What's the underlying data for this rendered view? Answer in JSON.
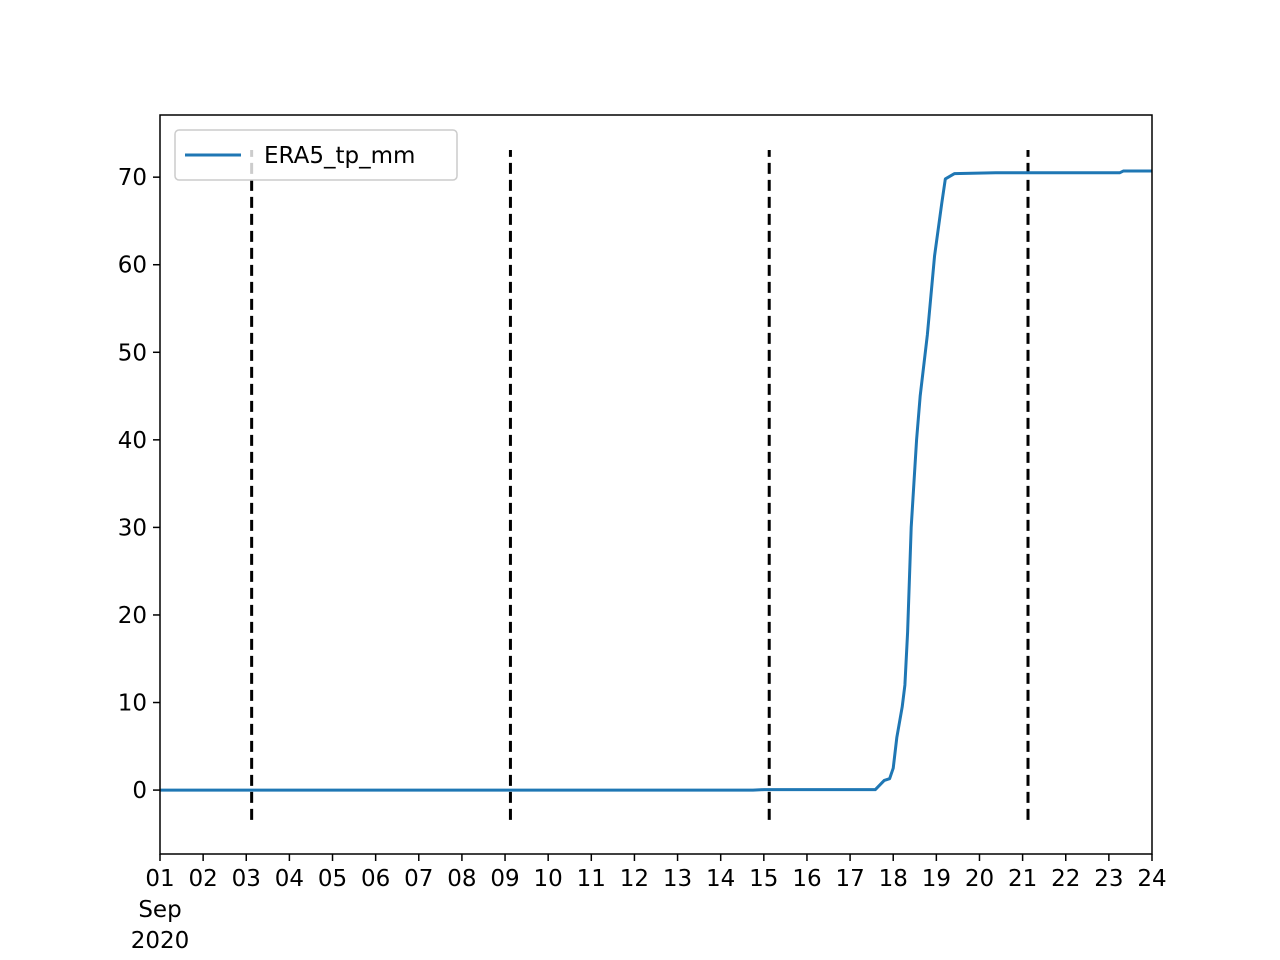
{
  "chart_data": {
    "type": "line",
    "series": [
      {
        "name": "ERA5_tp_mm",
        "color": "#1f77b4",
        "x": [
          "2020-09-01T00:00",
          "2020-09-14T18:00",
          "2020-09-15T00:00",
          "2020-09-17T14:00",
          "2020-09-17T19:00",
          "2020-09-17T22:00",
          "2020-09-18T00:00",
          "2020-09-18T02:00",
          "2020-09-18T05:00",
          "2020-09-18T06:30",
          "2020-09-18T08:00",
          "2020-09-18T10:00",
          "2020-09-18T13:00",
          "2020-09-18T15:00",
          "2020-09-18T19:00",
          "2020-09-18T23:00",
          "2020-09-19T03:00",
          "2020-09-19T05:00",
          "2020-09-19T10:00",
          "2020-09-20T09:00",
          "2020-09-23T06:00",
          "2020-09-23T08:00",
          "2020-09-24T00:00"
        ],
        "values": [
          0,
          0,
          0.05,
          0.05,
          1.1,
          1.3,
          2.5,
          6,
          9.5,
          12,
          18,
          30,
          40,
          45,
          52,
          61,
          67,
          69.8,
          70.4,
          70.5,
          70.5,
          70.7,
          70.7
        ]
      }
    ],
    "vlines": {
      "x": [
        "2020-09-03T03:00",
        "2020-09-09T03:00",
        "2020-09-15T03:00",
        "2020-09-21T03:00"
      ],
      "ymin": -3.4,
      "ymax": 73.1,
      "color": "#000000"
    },
    "xlim": [
      "2020-09-01",
      "2020-09-24"
    ],
    "xticks": [
      {
        "value": "2020-09-01",
        "label": "01\nSep\n2020"
      },
      {
        "value": "2020-09-02",
        "label": "02"
      },
      {
        "value": "2020-09-03",
        "label": "03"
      },
      {
        "value": "2020-09-04",
        "label": "04"
      },
      {
        "value": "2020-09-05",
        "label": "05"
      },
      {
        "value": "2020-09-06",
        "label": "06"
      },
      {
        "value": "2020-09-07",
        "label": "07"
      },
      {
        "value": "2020-09-08",
        "label": "08"
      },
      {
        "value": "2020-09-09",
        "label": "09"
      },
      {
        "value": "2020-09-10",
        "label": "10"
      },
      {
        "value": "2020-09-11",
        "label": "11"
      },
      {
        "value": "2020-09-12",
        "label": "12"
      },
      {
        "value": "2020-09-13",
        "label": "13"
      },
      {
        "value": "2020-09-14",
        "label": "14"
      },
      {
        "value": "2020-09-15",
        "label": "15"
      },
      {
        "value": "2020-09-16",
        "label": "16"
      },
      {
        "value": "2020-09-17",
        "label": "17"
      },
      {
        "value": "2020-09-18",
        "label": "18"
      },
      {
        "value": "2020-09-19",
        "label": "19"
      },
      {
        "value": "2020-09-20",
        "label": "20"
      },
      {
        "value": "2020-09-21",
        "label": "21"
      },
      {
        "value": "2020-09-22",
        "label": "22"
      },
      {
        "value": "2020-09-23",
        "label": "23"
      },
      {
        "value": "2020-09-24",
        "label": "24"
      }
    ],
    "ylim": [
      -7.3,
      77.1
    ],
    "yticks": [
      0,
      10,
      20,
      30,
      40,
      50,
      60,
      70
    ],
    "legend": "upper left"
  }
}
